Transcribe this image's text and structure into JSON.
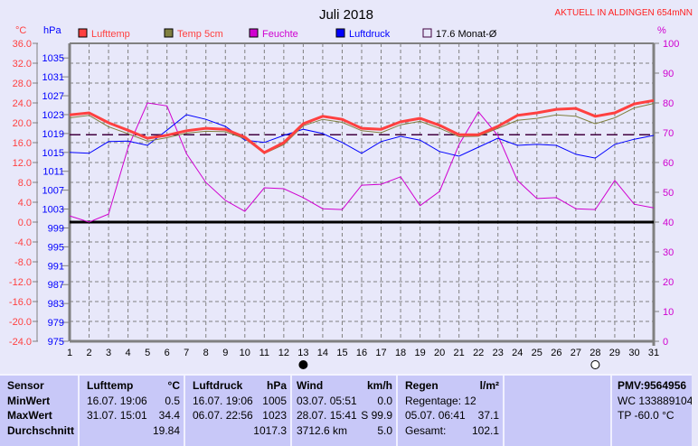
{
  "header": {
    "station": "AKTUELL IN ALDINGEN 654mNN"
  },
  "chart_data": {
    "type": "line",
    "title": "Juli 2018",
    "left_unit_temp": "°C",
    "left_unit_pressure": "hPa",
    "right_unit": "%",
    "x": [
      1,
      2,
      3,
      4,
      5,
      6,
      7,
      8,
      9,
      10,
      11,
      12,
      13,
      14,
      15,
      16,
      17,
      18,
      19,
      20,
      21,
      22,
      23,
      24,
      25,
      26,
      27,
      28,
      29,
      30,
      31
    ],
    "temp_ticks": [
      "36.0",
      "32.0",
      "28.0",
      "24.0",
      "20.0",
      "16.0",
      "12.0",
      "8.0",
      "4.0",
      "0.0",
      "-4.0",
      "-8.0",
      "-12.0",
      "-16.0",
      "-20.0",
      "-24.0"
    ],
    "pressure_ticks": [
      "1035",
      "1031",
      "1027",
      "1023",
      "1019",
      "1015",
      "1011",
      "1007",
      "1003",
      "999",
      "995",
      "991",
      "987",
      "983",
      "979",
      "975"
    ],
    "humidity_ticks": [
      "100",
      "90",
      "80",
      "70",
      "60",
      "50",
      "40",
      "30",
      "20",
      "10",
      "0"
    ],
    "temp_range": [
      -24,
      36
    ],
    "pressure_range": [
      975,
      1035
    ],
    "humidity_range": [
      0,
      100
    ],
    "grid": true,
    "legend": [
      {
        "name": "Lufttemp",
        "color": "#ff4040",
        "text_color": "#ff4040"
      },
      {
        "name": "Temp 5cm",
        "color": "#808040",
        "text_color": "#ff4040"
      },
      {
        "name": "Feuchte",
        "color": "#d000d0",
        "text_color": "#d000d0"
      },
      {
        "name": "Luftdruck",
        "color": "#0000ff",
        "text_color": "#0000ff"
      },
      {
        "name": "17.6 Monat-Ø",
        "color": "#400040",
        "text_color": "#000000"
      }
    ],
    "monthly_avg": 17.6,
    "series": [
      {
        "name": "Lufttemp",
        "axis": "temp",
        "color": "#ff4040",
        "values": [
          21.6,
          22.0,
          20.0,
          18.5,
          16.9,
          17.5,
          18.4,
          18.9,
          18.7,
          17.1,
          14.0,
          16.0,
          19.8,
          21.3,
          20.7,
          18.9,
          18.7,
          20.2,
          20.9,
          19.5,
          17.6,
          17.6,
          19.3,
          21.5,
          22.0,
          22.7,
          22.9,
          21.3,
          22.0,
          23.8,
          24.5
        ]
      },
      {
        "name": "Temp 5cm",
        "axis": "temp",
        "color": "#808040",
        "values": [
          21.0,
          21.5,
          19.2,
          17.8,
          16.3,
          17.0,
          17.9,
          18.3,
          18.2,
          16.8,
          13.8,
          15.6,
          19.4,
          20.7,
          20.1,
          18.4,
          18.0,
          19.6,
          20.3,
          18.9,
          17.2,
          17.3,
          18.9,
          20.5,
          20.9,
          21.6,
          21.3,
          19.8,
          21.0,
          23.0,
          23.9
        ]
      },
      {
        "name": "Feuchte",
        "axis": "humidity",
        "color": "#d000d0",
        "values": [
          42.1,
          40.0,
          42.7,
          65.0,
          80.0,
          79.0,
          63.0,
          53.3,
          47.3,
          43.6,
          51.5,
          51.2,
          48.2,
          44.5,
          44.2,
          52.4,
          52.7,
          55.2,
          45.5,
          50.3,
          66.0,
          77.0,
          69.0,
          54.0,
          47.9,
          48.2,
          44.5,
          44.2,
          54.0,
          46.0,
          44.8
        ]
      },
      {
        "name": "Luftdruck",
        "axis": "pressure",
        "color": "#0000ff",
        "values": [
          1015.0,
          1014.8,
          1017.3,
          1017.4,
          1016.5,
          1019.7,
          1023.0,
          1022.0,
          1020.5,
          1017.6,
          1017.1,
          1018.6,
          1019.9,
          1019.0,
          1017.1,
          1014.8,
          1017.3,
          1018.4,
          1017.6,
          1015.2,
          1014.2,
          1016.1,
          1018.0,
          1016.5,
          1016.7,
          1016.5,
          1014.6,
          1013.8,
          1016.7,
          1017.8,
          1018.6
        ]
      }
    ],
    "moon_phases": [
      {
        "day": 13,
        "phase": "new"
      },
      {
        "day": 28,
        "phase": "full"
      }
    ]
  },
  "table": {
    "sensor": {
      "title": "Sensor",
      "rows": [
        "MinWert",
        "MaxWert",
        "Durchschnitt"
      ]
    },
    "lufttemp": {
      "title": "Lufttemp",
      "unit": "°C",
      "min_time": "16.07.  19:06",
      "min": "0.5",
      "max_time": "31.07.  15:01",
      "max": "34.4",
      "avg": "19.84"
    },
    "luftdruck": {
      "title": "Luftdruck",
      "unit": "hPa",
      "min_time": "16.07.  19:06",
      "min": "1005",
      "max_time": "06.07.  22:56",
      "max": "1023",
      "avg": "1017.3"
    },
    "wind": {
      "title": "Wind",
      "unit": "km/h",
      "min_time": "03.07.  05:51",
      "min": "0.0",
      "max_time": "28.07.  15:41",
      "max": "S 99.9",
      "total": "3712.6 km",
      "avg": "5.0"
    },
    "regen": {
      "title": "Regen",
      "unit": "l/m²",
      "days": "Regentage: 12",
      "max_time": "05.07.  06:41",
      "max": "37.1",
      "total_label": "Gesamt:",
      "total": "102.1"
    },
    "pmv": {
      "title": "PMV:9564956",
      "wc": "WC 133889104.0",
      "tp": "TP -60.0 °C"
    }
  }
}
